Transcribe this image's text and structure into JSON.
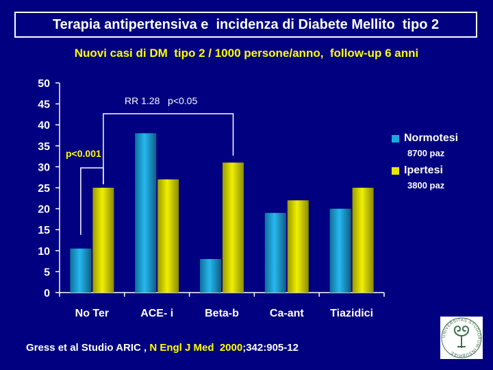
{
  "title": "Terapia antipertensiva e  incidenza di Diabete Mellito  tipo 2",
  "subtitle": "Nuovi casi di DM  tipo 2 / 1000 persone/anno,  follow-up 6 anni",
  "colors": {
    "background": "#000080",
    "normotesi": "#1aa7e0",
    "ipertesi": "#e6e600",
    "accent_text": "#ffff00"
  },
  "legend": {
    "normotesi_label": "Normotesi",
    "normotesi_sub": "8700 paz",
    "ipertesi_label": "Ipertesi",
    "ipertesi_sub": "3800 paz"
  },
  "annotations": {
    "rr": "RR 1.28   p<0.05",
    "p001": "p<0.001"
  },
  "citation": {
    "part1": "Gress et al Studio ARIC , ",
    "part2": "N Engl J Med  2000",
    "part3": ";342:905-12"
  },
  "logo": {
    "icon": "university-seal-icon",
    "text": "UNIVERSITAS STUDIORUM INSUBRIAE"
  },
  "chart_data": {
    "type": "bar",
    "categories": [
      "No Ter",
      "ACE- i",
      "Beta-b",
      "Ca-ant",
      "Tiazidici"
    ],
    "series": [
      {
        "name": "Normotesi",
        "values": [
          10.5,
          38,
          8,
          19,
          20
        ]
      },
      {
        "name": "Ipertesi",
        "values": [
          25,
          27,
          31,
          22,
          25
        ]
      }
    ],
    "ylim": [
      0,
      50
    ],
    "yticks": [
      0,
      5,
      10,
      15,
      20,
      25,
      30,
      35,
      40,
      45,
      50
    ],
    "grid": false,
    "legend_position": "right"
  }
}
